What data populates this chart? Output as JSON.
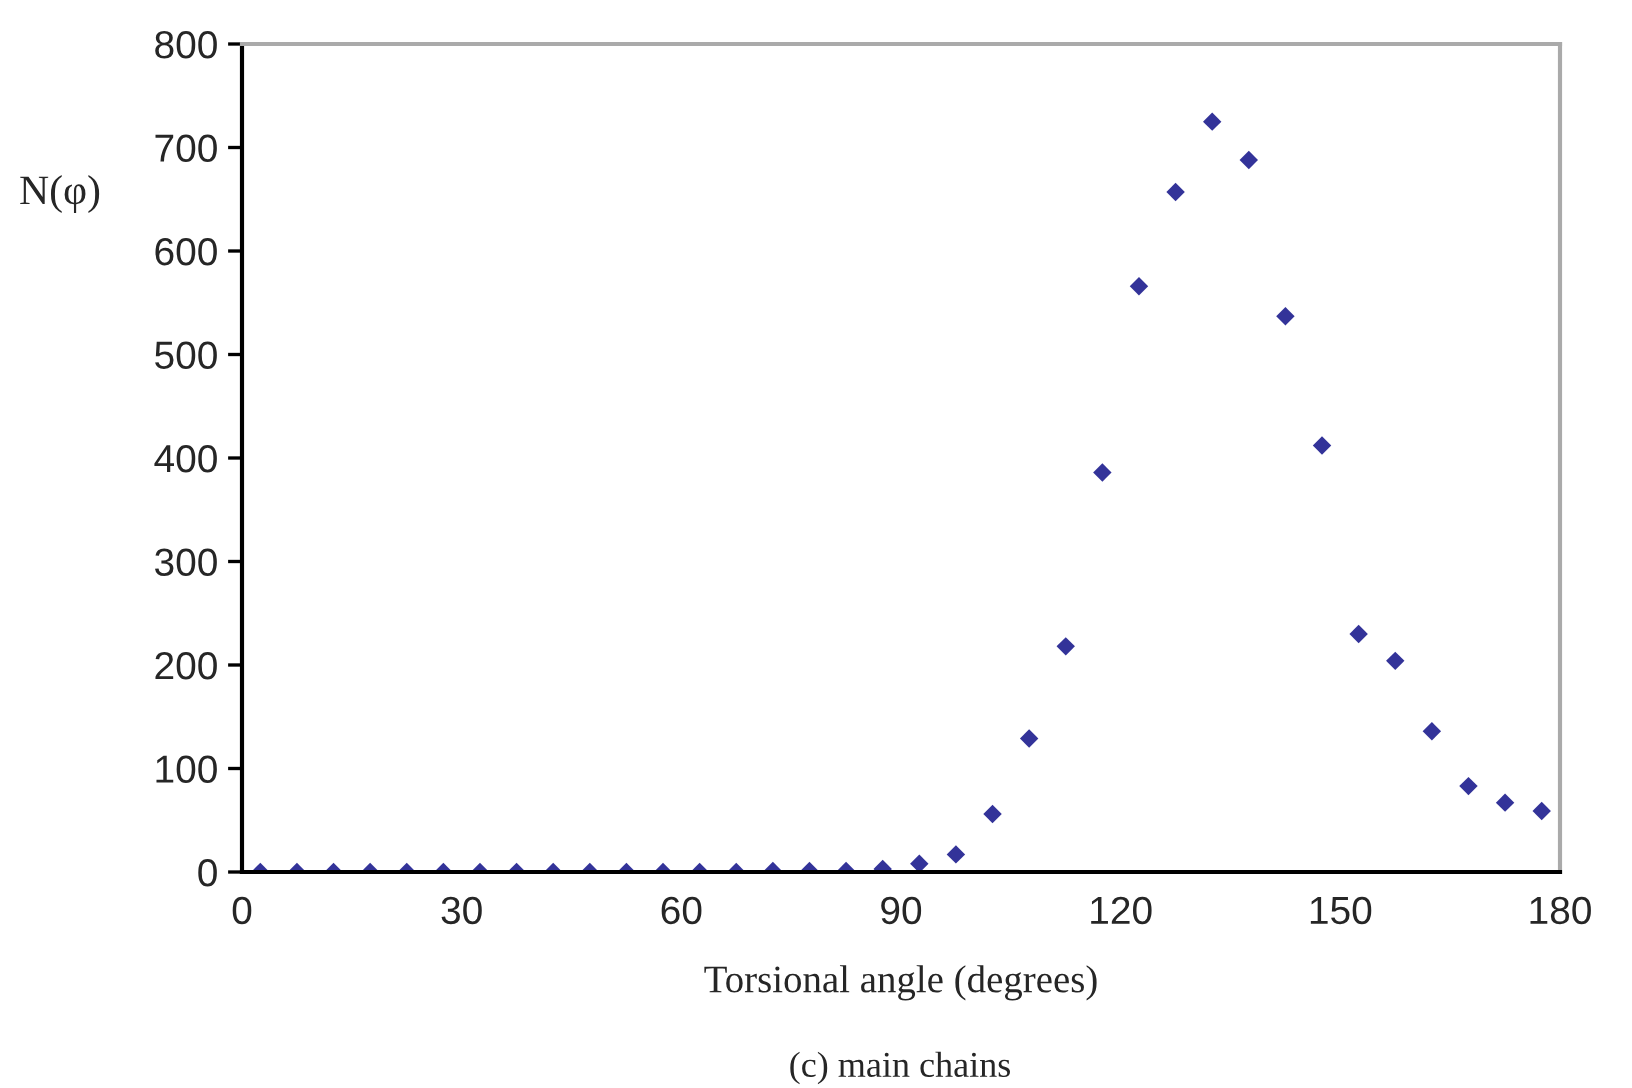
{
  "chart_data": {
    "type": "scatter",
    "xlabel": "Torsional angle (degrees)",
    "ylabel": "N(φ)",
    "annotations": [
      "(c) main chains"
    ],
    "x": [
      2.5,
      7.5,
      12.5,
      17.5,
      22.5,
      27.5,
      32.5,
      37.5,
      42.5,
      47.5,
      52.5,
      57.5,
      62.5,
      67.5,
      72.5,
      77.5,
      82.5,
      87.5,
      92.5,
      97.5,
      102.5,
      107.5,
      112.5,
      117.5,
      122.5,
      127.5,
      132.5,
      137.5,
      142.5,
      147.5,
      152.5,
      157.5,
      162.5,
      167.5,
      172.5,
      177.5
    ],
    "series": [
      {
        "color": "#333399",
        "values": [
          0,
          0,
          0,
          0,
          0,
          0,
          0,
          0,
          0,
          0,
          0,
          0,
          0,
          0,
          1,
          1,
          1,
          3,
          8,
          17,
          56,
          129,
          218,
          386,
          566,
          657,
          725,
          688,
          537,
          412,
          230,
          204,
          136,
          83,
          67,
          59
        ]
      }
    ],
    "marker": "diamond",
    "grid": false,
    "xlim": [
      0,
      180
    ],
    "xticks": [
      0,
      30,
      60,
      90,
      120,
      150,
      180
    ],
    "ylim": [
      0,
      800
    ],
    "yticks": [
      0,
      100,
      200,
      300,
      400,
      500,
      600,
      700,
      800
    ]
  }
}
